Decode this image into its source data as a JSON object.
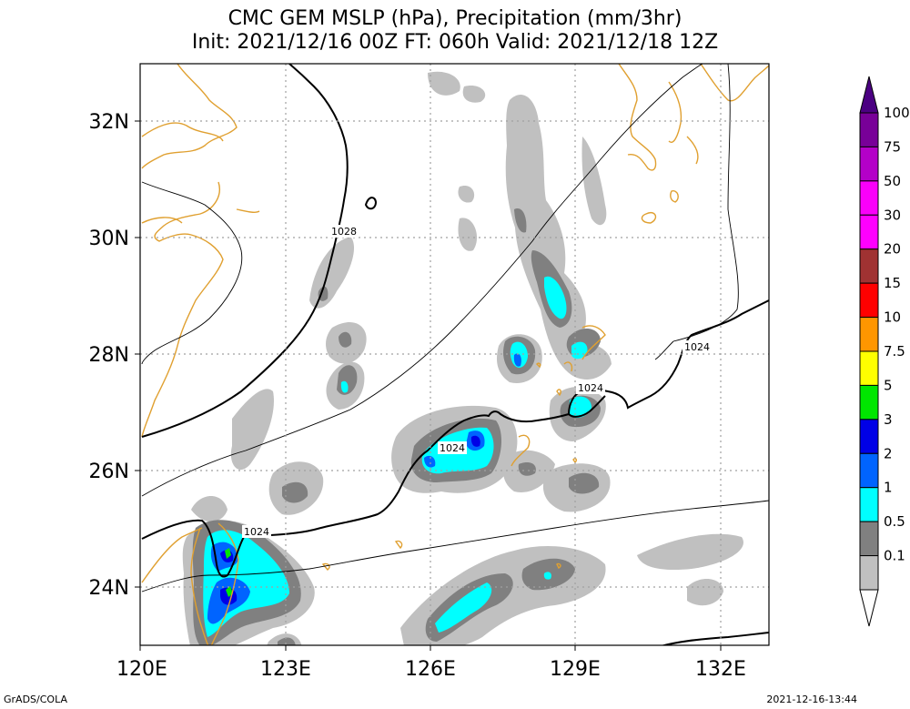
{
  "title": {
    "line1": "CMC GEM MSLP (hPa), Precipitation (mm/3hr)",
    "line2": "Init: 2021/12/16 00Z  FT: 060h  Valid: 2021/12/18 12Z"
  },
  "axes": {
    "lat_labels": [
      "32N",
      "30N",
      "28N",
      "26N",
      "24N"
    ],
    "lon_labels": [
      "120E",
      "123E",
      "126E",
      "129E",
      "132E"
    ]
  },
  "isobar_labels": [
    "1028",
    "1024",
    "1024",
    "1024",
    "1024"
  ],
  "legend": {
    "labels": [
      "100",
      "75",
      "50",
      "30",
      "20",
      "15",
      "10",
      "7.5",
      "5",
      "3",
      "2",
      "1",
      "0.5",
      "0.1"
    ],
    "colors": [
      "#780098",
      "#b400c8",
      "#fa00fa",
      "#ff00ff",
      "#a03232",
      "#ff0000",
      "#ff9600",
      "#ffff00",
      "#00e600",
      "#0000e6",
      "#0064ff",
      "#00ffff",
      "#808080",
      "#c0c0c0"
    ]
  },
  "colors": {
    "coast": "#e0a030",
    "isobar": "#000000",
    "grid": "#a0a0a0",
    "precip_light": "#c0c0c0",
    "precip_mid": "#808080",
    "precip_cyan": "#00ffff",
    "precip_blue2": "#0064ff",
    "precip_blue3": "#0000e6",
    "precip_green": "#00e600"
  },
  "footer": {
    "left": "GrADS/COLA",
    "right": "2021-12-16-13:44"
  }
}
